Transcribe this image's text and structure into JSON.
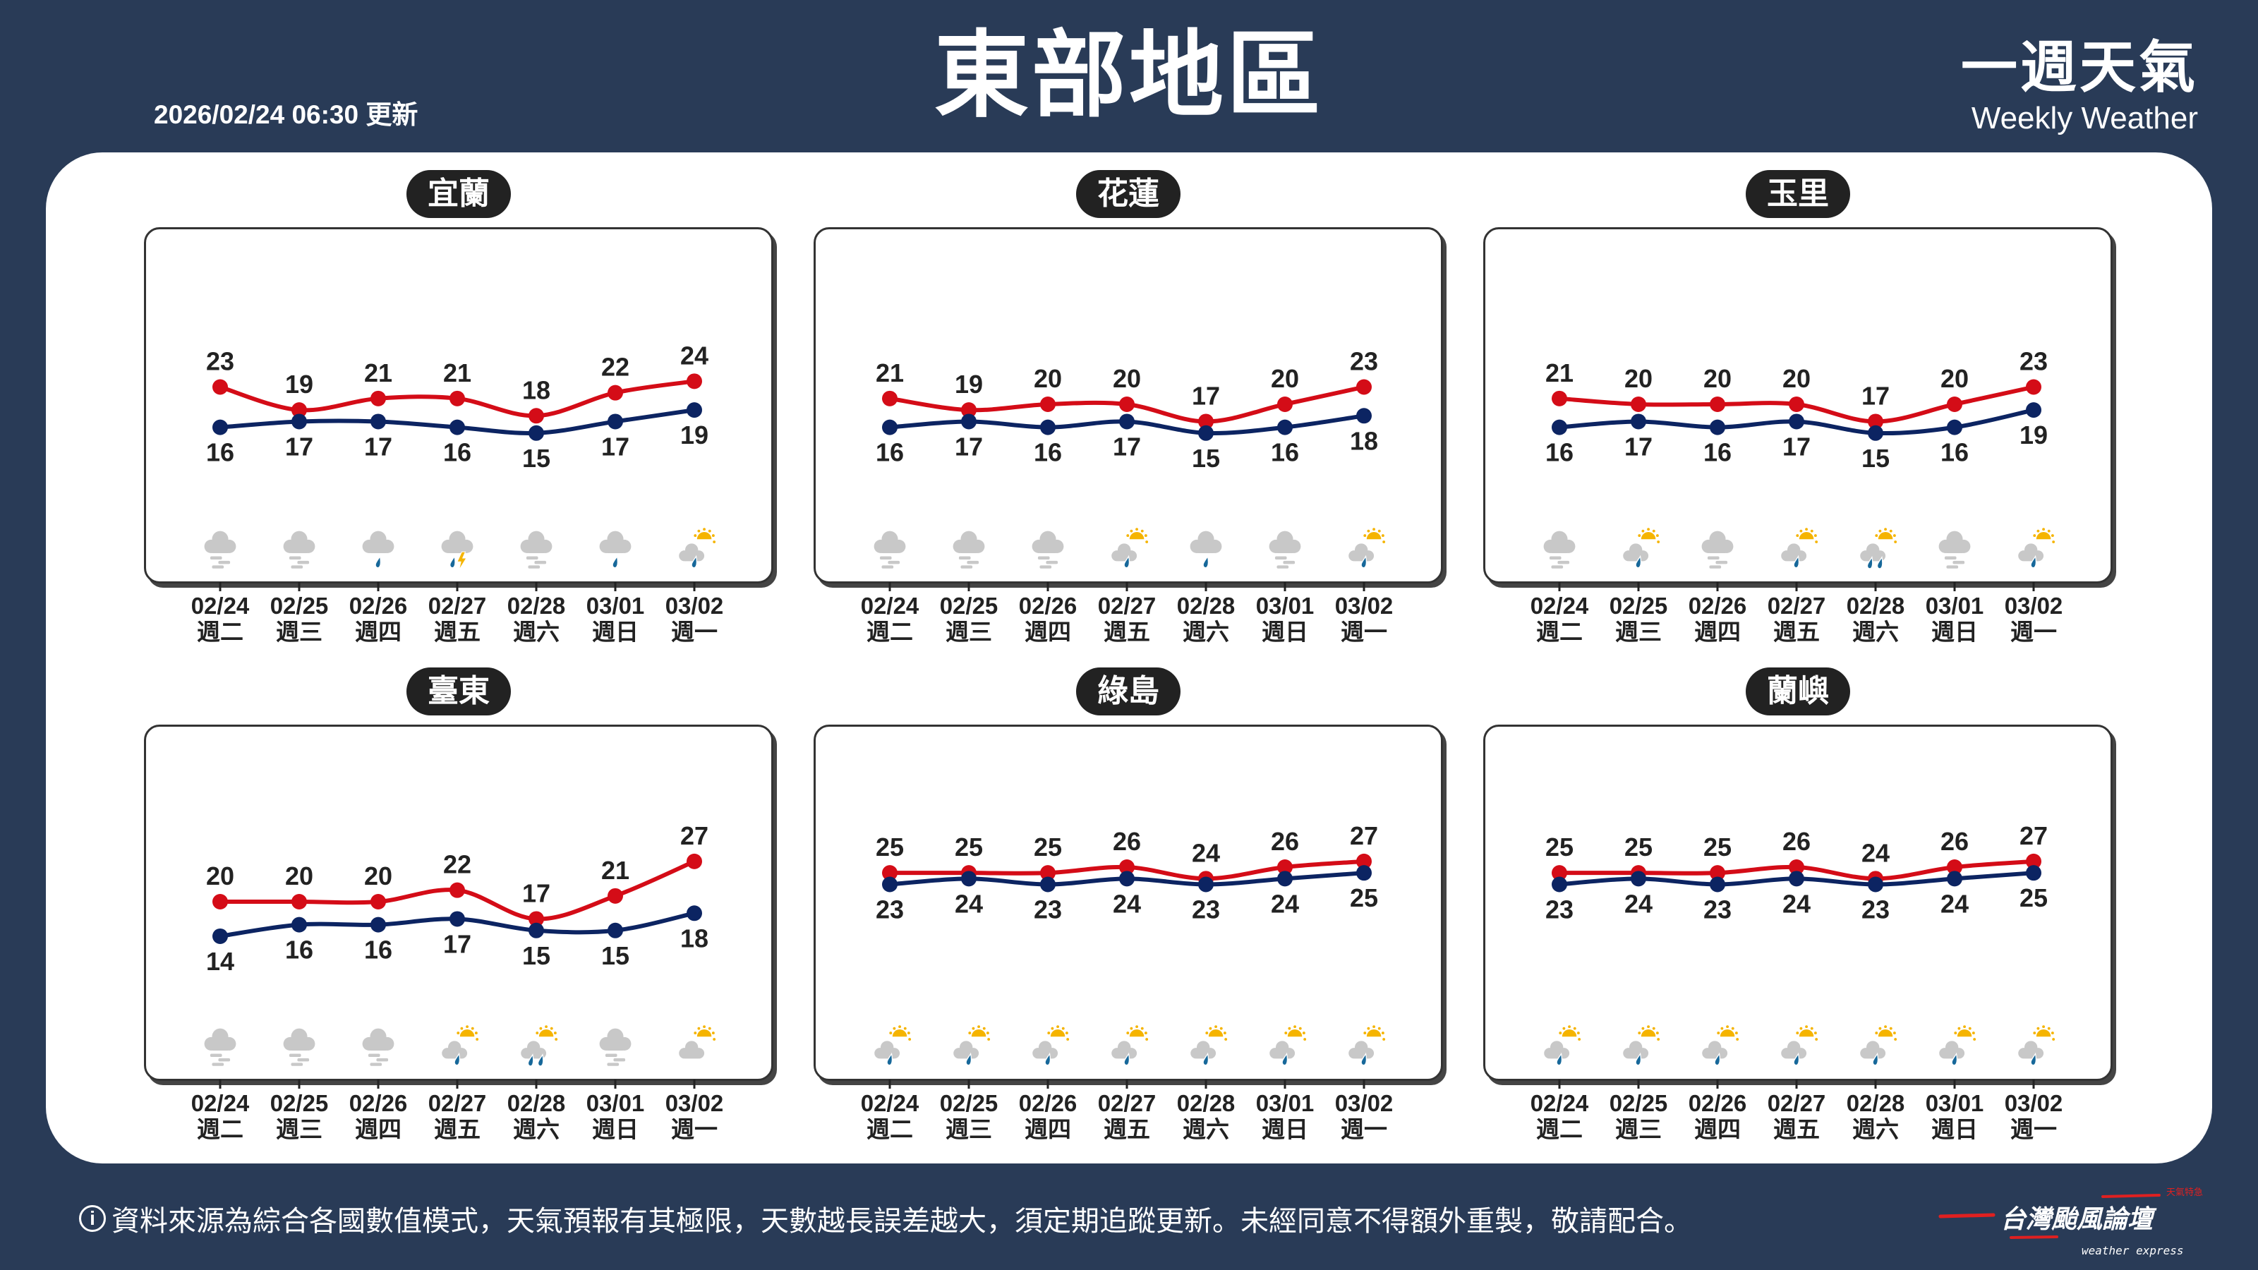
{
  "header": {
    "updated": "2026/02/24 06:30 更新",
    "title": "東部地區",
    "brand_zh": "一週天氣",
    "brand_en": "Weekly Weather"
  },
  "colors": {
    "background": "#293b57",
    "high": "#d40c17",
    "low": "#0c2462",
    "cloud": "#c8c8c8",
    "rain": "#17689a",
    "sun": "#f5b400"
  },
  "days": [
    {
      "date": "02/24",
      "weekday": "週二"
    },
    {
      "date": "02/25",
      "weekday": "週三"
    },
    {
      "date": "02/26",
      "weekday": "週四"
    },
    {
      "date": "02/27",
      "weekday": "週五"
    },
    {
      "date": "02/28",
      "weekday": "週六"
    },
    {
      "date": "03/01",
      "weekday": "週日"
    },
    {
      "date": "03/02",
      "weekday": "週一"
    }
  ],
  "chart_data": [
    {
      "type": "line",
      "title": "宜蘭",
      "high": [
        23,
        19,
        21,
        21,
        18,
        22,
        24
      ],
      "low": [
        16,
        17,
        17,
        16,
        15,
        17,
        19
      ],
      "icons": [
        "cloudy-fog",
        "cloudy-fog",
        "cloudy-rain",
        "thunderstorm-rain",
        "cloudy-fog",
        "cloudy-rain",
        "partly-sunny-rain"
      ]
    },
    {
      "type": "line",
      "title": "花蓮",
      "high": [
        21,
        19,
        20,
        20,
        17,
        20,
        23
      ],
      "low": [
        16,
        17,
        16,
        17,
        15,
        16,
        18
      ],
      "icons": [
        "cloudy-fog",
        "cloudy-fog",
        "cloudy-fog",
        "partly-sunny-rain",
        "cloudy-rain",
        "cloudy-fog",
        "partly-sunny-rain"
      ]
    },
    {
      "type": "line",
      "title": "玉里",
      "high": [
        21,
        20,
        20,
        20,
        17,
        20,
        23
      ],
      "low": [
        16,
        17,
        16,
        17,
        15,
        16,
        19
      ],
      "icons": [
        "cloudy-fog",
        "partly-sunny-rain",
        "cloudy-fog",
        "partly-sunny-rain",
        "partly-sunny-heavy-rain",
        "cloudy-fog",
        "partly-sunny-rain"
      ]
    },
    {
      "type": "line",
      "title": "臺東",
      "high": [
        20,
        20,
        20,
        22,
        17,
        21,
        27
      ],
      "low": [
        14,
        16,
        16,
        17,
        15,
        15,
        18
      ],
      "icons": [
        "cloudy-fog",
        "cloudy-fog",
        "cloudy-fog",
        "partly-sunny-rain",
        "partly-sunny-heavy-rain",
        "cloudy-fog",
        "partly-cloudy"
      ]
    },
    {
      "type": "line",
      "title": "綠島",
      "high": [
        25,
        25,
        25,
        26,
        24,
        26,
        27
      ],
      "low": [
        23,
        24,
        23,
        24,
        23,
        24,
        25
      ],
      "icons": [
        "partly-sunny-rain",
        "partly-sunny-rain",
        "partly-sunny-rain",
        "partly-sunny-rain",
        "partly-sunny-rain",
        "partly-sunny-rain",
        "partly-sunny-rain"
      ]
    },
    {
      "type": "line",
      "title": "蘭嶼",
      "high": [
        25,
        25,
        25,
        26,
        24,
        26,
        27
      ],
      "low": [
        23,
        24,
        23,
        24,
        23,
        24,
        25
      ],
      "icons": [
        "partly-sunny-rain",
        "partly-sunny-rain",
        "partly-sunny-rain",
        "partly-sunny-rain",
        "partly-sunny-rain",
        "partly-sunny-rain",
        "partly-sunny-rain"
      ]
    }
  ],
  "footer": {
    "info_icon": "info-icon",
    "disclaimer": "資料來源為綜合各國數值模式，天氣預報有其極限，天數越長誤差越大，須定期追蹤更新。未經同意不得額外重製，敬請配合。"
  },
  "logo": {
    "name": "台灣颱風論壇",
    "tag": "天氣特急",
    "en": "weather express"
  }
}
